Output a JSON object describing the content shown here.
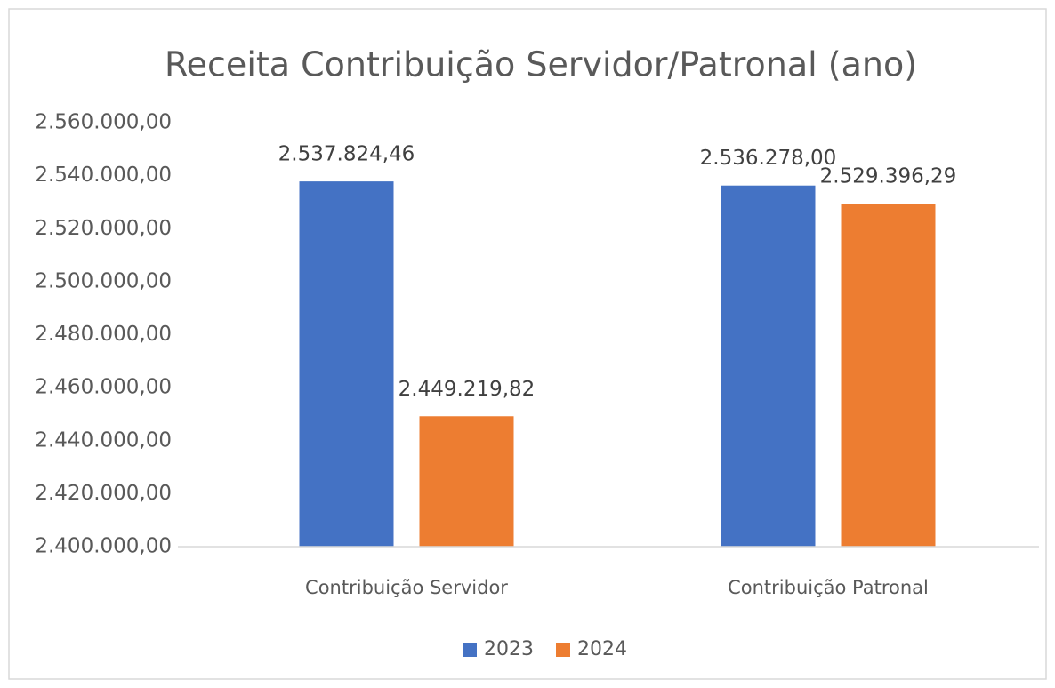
{
  "chart_data": {
    "type": "bar",
    "title": "Receita Contribuição Servidor/Patronal (ano)",
    "categories": [
      "Contribuição Servidor",
      "Contribuição Patronal"
    ],
    "series": [
      {
        "name": "2023",
        "color": "#4472c4",
        "values": [
          2537824.46,
          2536278.0
        ],
        "value_labels": [
          "2.537.824,46",
          "2.536.278,00"
        ]
      },
      {
        "name": "2024",
        "color": "#ed7d31",
        "values": [
          2449219.82,
          2529396.29
        ],
        "value_labels": [
          "2.449.219,82",
          "2.529.396,29"
        ]
      }
    ],
    "ylim": [
      2400000,
      2560000
    ],
    "yticks": [
      {
        "value": 2400000,
        "label": "2.400.000,00"
      },
      {
        "value": 2420000,
        "label": "2.420.000,00"
      },
      {
        "value": 2440000,
        "label": "2.440.000,00"
      },
      {
        "value": 2460000,
        "label": "2.460.000,00"
      },
      {
        "value": 2480000,
        "label": "2.480.000,00"
      },
      {
        "value": 2500000,
        "label": "2.500.000,00"
      },
      {
        "value": 2520000,
        "label": "2.520.000,00"
      },
      {
        "value": 2540000,
        "label": "2.540.000,00"
      },
      {
        "value": 2560000,
        "label": "2.560.000,00"
      }
    ],
    "grid": false,
    "legend": "bottom"
  }
}
